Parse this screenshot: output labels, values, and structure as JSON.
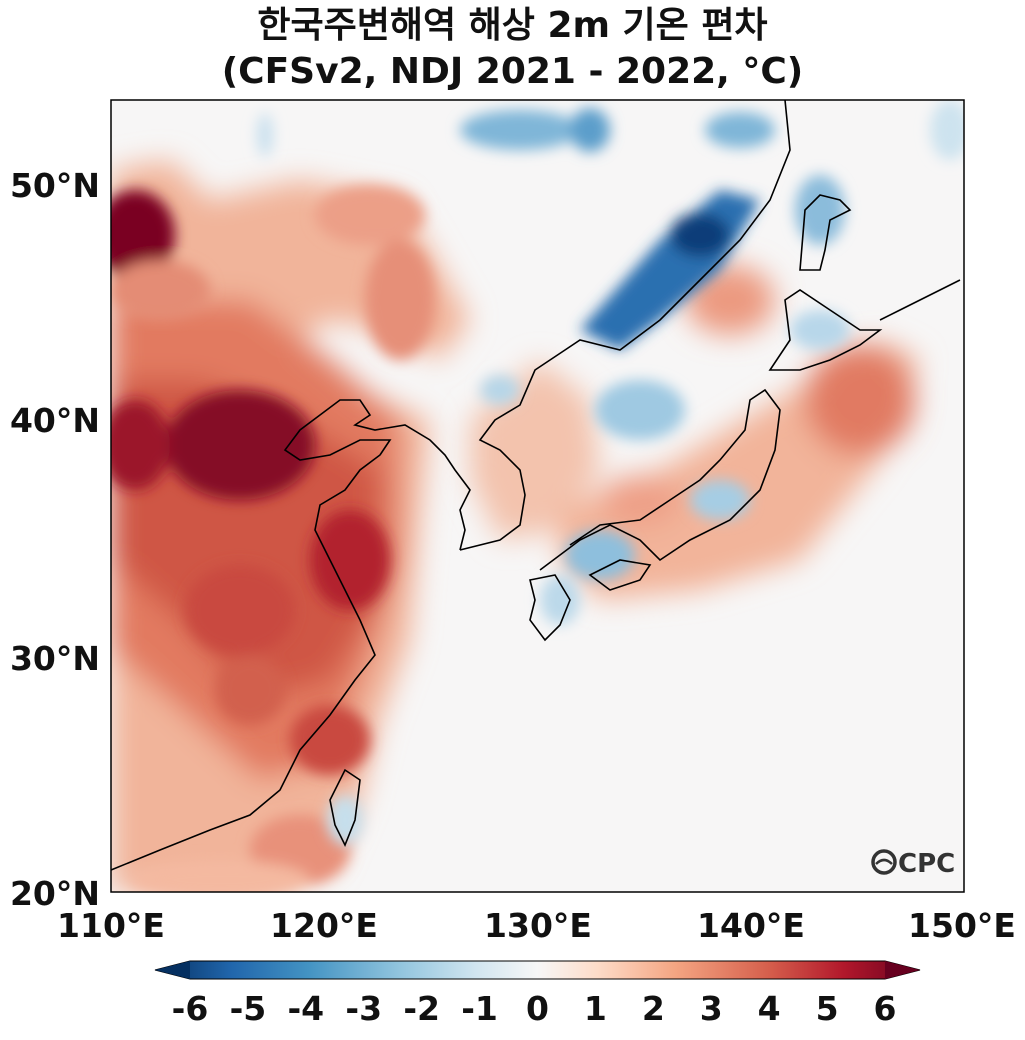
{
  "title": {
    "line1": "한국주변해역 해상 2m 기온 편차",
    "line2": "(CFSv2, NDJ 2021 - 2022, °C)"
  },
  "axes": {
    "lat_ticks": [
      "20°N",
      "30°N",
      "40°N",
      "50°N"
    ],
    "lon_ticks": [
      "110°E",
      "120°E",
      "130°E",
      "140°E",
      "150°E"
    ]
  },
  "colorbar": {
    "labels": [
      "-6",
      "-5",
      "-4",
      "-3",
      "-2",
      "-1",
      "0",
      "1",
      "2",
      "3",
      "4",
      "5",
      "6"
    ],
    "colors": [
      "#053061",
      "#2166ac",
      "#4393c3",
      "#92c5de",
      "#d1e5f0",
      "#f7f7f7",
      "#fddbc7",
      "#f4a582",
      "#d6604d",
      "#b2182b",
      "#67001f"
    ]
  },
  "logo": {
    "text": "CPC"
  }
}
